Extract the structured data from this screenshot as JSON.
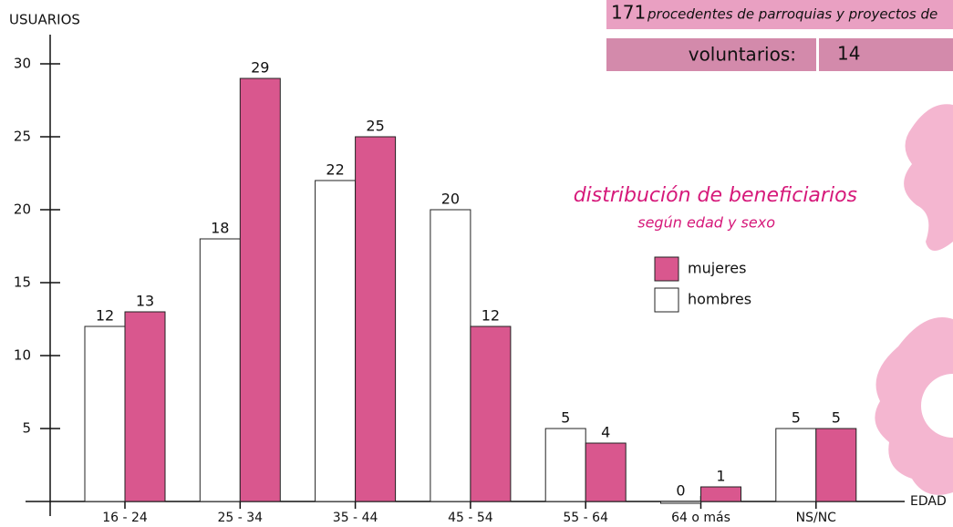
{
  "banner": {
    "count": 171,
    "text": "procedentes de parroquias y proyectos de"
  },
  "volunteers": {
    "label": "voluntarios:",
    "value": 14
  },
  "chart_data": {
    "type": "bar",
    "title": "distribución de beneficiarios",
    "subtitle": "según edad y sexo",
    "y_label": "USUARIOS",
    "x_label": "EDAD",
    "categories": [
      "16 - 24",
      "25 - 34",
      "35 - 44",
      "45 - 54",
      "55 - 64",
      "64 o más",
      "NS/NC"
    ],
    "series": [
      {
        "name": "hombres",
        "color": "#ffffff",
        "values": [
          12,
          18,
          22,
          20,
          5,
          0,
          5
        ]
      },
      {
        "name": "mujeres",
        "color": "#d9578e",
        "values": [
          13,
          29,
          25,
          12,
          4,
          1,
          5
        ]
      }
    ],
    "ylim": [
      0,
      32
    ],
    "yticks": [
      5,
      10,
      15,
      20,
      25,
      30
    ],
    "grid": false,
    "legend": "right"
  }
}
